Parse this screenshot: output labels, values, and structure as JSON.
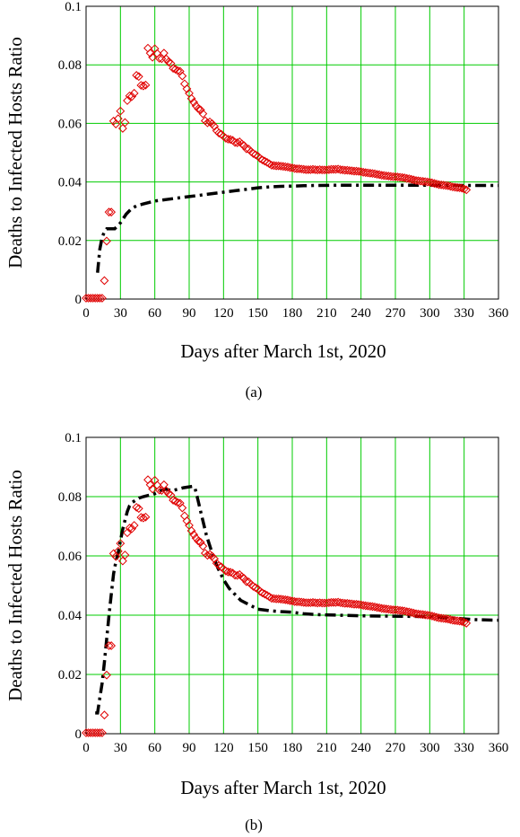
{
  "chart_data": [
    {
      "type": "line",
      "caption": "(a)",
      "xlabel": "Days after March 1st, 2020",
      "ylabel": "Deaths to Infected Hosts Ratio",
      "xlim": [
        0,
        360
      ],
      "ylim": [
        0,
        0.1
      ],
      "x_ticks": [
        "0",
        "30",
        "60",
        "90",
        "120",
        "150",
        "180",
        "210",
        "240",
        "270",
        "300",
        "330",
        "360"
      ],
      "y_ticks": [
        "0",
        "0.02",
        "0.04",
        "0.06",
        "0.08",
        "0.1"
      ],
      "grid": true,
      "colors": {
        "grid": "#00cc00",
        "observed": "#e00000",
        "model": "#000000"
      },
      "series": [
        {
          "marker": "diamond",
          "x": [
            0,
            2,
            4,
            6,
            8,
            10,
            12,
            14,
            16,
            18,
            20,
            22,
            24,
            26,
            28,
            30,
            32,
            34,
            36,
            38,
            40,
            42,
            44,
            46,
            48,
            50,
            52,
            54,
            56,
            58,
            60,
            62,
            64,
            66,
            68,
            70,
            72,
            74,
            76,
            78,
            80,
            82,
            84,
            86,
            88,
            90,
            92,
            94,
            96,
            98,
            100,
            102,
            104,
            106,
            108,
            110,
            112,
            114,
            116,
            118,
            120,
            122,
            124,
            126,
            128,
            130,
            132,
            134,
            136,
            138,
            140,
            142,
            144,
            146,
            148,
            150,
            152,
            154,
            156,
            158,
            160,
            162,
            164,
            166,
            168,
            170,
            172,
            174,
            176,
            178,
            180,
            182,
            184,
            186,
            188,
            190,
            192,
            194,
            196,
            198,
            200,
            202,
            204,
            206,
            208,
            210,
            212,
            214,
            216,
            218,
            220,
            222,
            224,
            226,
            228,
            230,
            232,
            234,
            236,
            238,
            240,
            242,
            244,
            246,
            248,
            250,
            252,
            254,
            256,
            258,
            260,
            262,
            264,
            266,
            268,
            270,
            272,
            274,
            276,
            278,
            280,
            282,
            284,
            286,
            288,
            290,
            292,
            294,
            296,
            298,
            300,
            302,
            304,
            306,
            308,
            310,
            312,
            314,
            316,
            318,
            320,
            322,
            324,
            326,
            328,
            330,
            332
          ],
          "y": [
            0.0003,
            0.0003,
            0.0003,
            0.0003,
            0.0003,
            0.0003,
            0.0003,
            0.0003,
            0.0063,
            0.0198,
            0.0297,
            0.0297,
            0.0608,
            0.0598,
            0.0616,
            0.0642,
            0.0583,
            0.0603,
            0.0678,
            0.0694,
            0.0692,
            0.0703,
            0.0764,
            0.076,
            0.073,
            0.0728,
            0.0731,
            0.0857,
            0.084,
            0.0826,
            0.0855,
            0.0839,
            0.0822,
            0.0821,
            0.084,
            0.082,
            0.081,
            0.0805,
            0.0788,
            0.0785,
            0.078,
            0.0778,
            0.0762,
            0.0735,
            0.0718,
            0.0703,
            0.0685,
            0.0672,
            0.066,
            0.065,
            0.0646,
            0.0633,
            0.0609,
            0.0602,
            0.0605,
            0.0599,
            0.059,
            0.0575,
            0.0567,
            0.0563,
            0.0556,
            0.0549,
            0.0546,
            0.0545,
            0.0542,
            0.0535,
            0.0534,
            0.0537,
            0.053,
            0.0524,
            0.0513,
            0.0512,
            0.0504,
            0.0497,
            0.0493,
            0.0488,
            0.048,
            0.0475,
            0.0471,
            0.0467,
            0.0462,
            0.0457,
            0.0456,
            0.0455,
            0.0455,
            0.0454,
            0.0453,
            0.0452,
            0.0451,
            0.0449,
            0.0448,
            0.0446,
            0.0445,
            0.0445,
            0.0444,
            0.0443,
            0.0442,
            0.0442,
            0.0442,
            0.0443,
            0.0442,
            0.0441,
            0.0442,
            0.0441,
            0.0441,
            0.0441,
            0.0442,
            0.0443,
            0.0443,
            0.0443,
            0.0444,
            0.0442,
            0.0441,
            0.044,
            0.044,
            0.0439,
            0.0438,
            0.0437,
            0.0437,
            0.0436,
            0.0435,
            0.0433,
            0.0432,
            0.0431,
            0.043,
            0.0429,
            0.0428,
            0.0426,
            0.0425,
            0.0423,
            0.0422,
            0.0421,
            0.042,
            0.0419,
            0.0418,
            0.0418,
            0.0417,
            0.0416,
            0.0415,
            0.0414,
            0.0412,
            0.0411,
            0.0409,
            0.0407,
            0.0405,
            0.0404,
            0.0403,
            0.0402,
            0.0401,
            0.04,
            0.0399,
            0.0397,
            0.0395,
            0.0393,
            0.0391,
            0.039,
            0.0389,
            0.0388,
            0.0387,
            0.0385,
            0.0383,
            0.0382,
            0.0381,
            0.038,
            0.0379,
            0.0376,
            0.0373
          ]
        },
        {
          "line": "dash-dot",
          "x": [
            10,
            12,
            14,
            16,
            18,
            20,
            25,
            30,
            35,
            40,
            45,
            50,
            60,
            70,
            80,
            90,
            100,
            110,
            120,
            130,
            140,
            150,
            160,
            170,
            180,
            190,
            200,
            220,
            240,
            260,
            280,
            300,
            320,
            340,
            360
          ],
          "y": [
            0.009,
            0.017,
            0.021,
            0.023,
            0.024,
            0.024,
            0.024,
            0.026,
            0.029,
            0.031,
            0.032,
            0.0325,
            0.0335,
            0.034,
            0.0345,
            0.035,
            0.0355,
            0.036,
            0.0365,
            0.037,
            0.0375,
            0.038,
            0.0383,
            0.0385,
            0.0386,
            0.0387,
            0.0388,
            0.0389,
            0.0389,
            0.0389,
            0.0389,
            0.0389,
            0.0388,
            0.0388,
            0.0388
          ]
        }
      ]
    },
    {
      "type": "line",
      "caption": "(b)",
      "xlabel": "Days after March 1st, 2020",
      "ylabel": "Deaths to Infected Hosts Ratio",
      "xlim": [
        0,
        360
      ],
      "ylim": [
        0,
        0.1
      ],
      "x_ticks": [
        "0",
        "30",
        "60",
        "90",
        "120",
        "150",
        "180",
        "210",
        "240",
        "270",
        "300",
        "330",
        "360"
      ],
      "y_ticks": [
        "0",
        "0.02",
        "0.04",
        "0.06",
        "0.08",
        "0.1"
      ],
      "grid": true,
      "colors": {
        "grid": "#00cc00",
        "observed": "#e00000",
        "model": "#000000"
      },
      "series": [
        {
          "marker": "diamond",
          "x": [
            0,
            2,
            4,
            6,
            8,
            10,
            12,
            14,
            16,
            18,
            20,
            22,
            24,
            26,
            28,
            30,
            32,
            34,
            36,
            38,
            40,
            42,
            44,
            46,
            48,
            50,
            52,
            54,
            56,
            58,
            60,
            62,
            64,
            66,
            68,
            70,
            72,
            74,
            76,
            78,
            80,
            82,
            84,
            86,
            88,
            90,
            92,
            94,
            96,
            98,
            100,
            102,
            104,
            106,
            108,
            110,
            112,
            114,
            116,
            118,
            120,
            122,
            124,
            126,
            128,
            130,
            132,
            134,
            136,
            138,
            140,
            142,
            144,
            146,
            148,
            150,
            152,
            154,
            156,
            158,
            160,
            162,
            164,
            166,
            168,
            170,
            172,
            174,
            176,
            178,
            180,
            182,
            184,
            186,
            188,
            190,
            192,
            194,
            196,
            198,
            200,
            202,
            204,
            206,
            208,
            210,
            212,
            214,
            216,
            218,
            220,
            222,
            224,
            226,
            228,
            230,
            232,
            234,
            236,
            238,
            240,
            242,
            244,
            246,
            248,
            250,
            252,
            254,
            256,
            258,
            260,
            262,
            264,
            266,
            268,
            270,
            272,
            274,
            276,
            278,
            280,
            282,
            284,
            286,
            288,
            290,
            292,
            294,
            296,
            298,
            300,
            302,
            304,
            306,
            308,
            310,
            312,
            314,
            316,
            318,
            320,
            322,
            324,
            326,
            328,
            330,
            332
          ],
          "y": [
            0.0003,
            0.0003,
            0.0003,
            0.0003,
            0.0003,
            0.0003,
            0.0003,
            0.0003,
            0.0063,
            0.0198,
            0.0297,
            0.0297,
            0.0608,
            0.0598,
            0.0616,
            0.0642,
            0.0583,
            0.0603,
            0.0678,
            0.0694,
            0.0692,
            0.0703,
            0.0764,
            0.076,
            0.073,
            0.0728,
            0.0731,
            0.0857,
            0.084,
            0.0826,
            0.0855,
            0.0839,
            0.0822,
            0.0821,
            0.084,
            0.082,
            0.081,
            0.0805,
            0.0788,
            0.0785,
            0.078,
            0.0778,
            0.0762,
            0.0735,
            0.0718,
            0.0703,
            0.0685,
            0.0672,
            0.066,
            0.065,
            0.0646,
            0.0633,
            0.0609,
            0.0602,
            0.0605,
            0.0599,
            0.059,
            0.0575,
            0.0567,
            0.0563,
            0.0556,
            0.0549,
            0.0546,
            0.0545,
            0.0542,
            0.0535,
            0.0534,
            0.0537,
            0.053,
            0.0524,
            0.0513,
            0.0512,
            0.0504,
            0.0497,
            0.0493,
            0.0488,
            0.048,
            0.0475,
            0.0471,
            0.0467,
            0.0462,
            0.0457,
            0.0456,
            0.0455,
            0.0455,
            0.0454,
            0.0453,
            0.0452,
            0.0451,
            0.0449,
            0.0448,
            0.0446,
            0.0445,
            0.0445,
            0.0444,
            0.0443,
            0.0442,
            0.0442,
            0.0442,
            0.0443,
            0.0442,
            0.0441,
            0.0442,
            0.0441,
            0.0441,
            0.0441,
            0.0442,
            0.0443,
            0.0443,
            0.0443,
            0.0444,
            0.0442,
            0.0441,
            0.044,
            0.044,
            0.0439,
            0.0438,
            0.0437,
            0.0437,
            0.0436,
            0.0435,
            0.0433,
            0.0432,
            0.0431,
            0.043,
            0.0429,
            0.0428,
            0.0426,
            0.0425,
            0.0423,
            0.0422,
            0.0421,
            0.042,
            0.0419,
            0.0418,
            0.0418,
            0.0417,
            0.0416,
            0.0415,
            0.0414,
            0.0412,
            0.0411,
            0.0409,
            0.0407,
            0.0405,
            0.0404,
            0.0403,
            0.0402,
            0.0401,
            0.04,
            0.0399,
            0.0397,
            0.0395,
            0.0393,
            0.0391,
            0.039,
            0.0389,
            0.0388,
            0.0387,
            0.0385,
            0.0383,
            0.0382,
            0.0381,
            0.038,
            0.0379,
            0.0376,
            0.0373
          ]
        },
        {
          "line": "dash-dot",
          "x": [
            8,
            10,
            12,
            14,
            16,
            18,
            20,
            22,
            24,
            26,
            28,
            30,
            32,
            34,
            36,
            38,
            40,
            42,
            44,
            46,
            50,
            55,
            60,
            65,
            70,
            75,
            80,
            85,
            90,
            93,
            95,
            97,
            100,
            105,
            110,
            115,
            120,
            125,
            130,
            135,
            140,
            145,
            150,
            155,
            160,
            170,
            180,
            190,
            200,
            220,
            240,
            260,
            280,
            300,
            320,
            340,
            360
          ],
          "y": [
            0.007,
            0.007,
            0.012,
            0.017,
            0.024,
            0.032,
            0.04,
            0.047,
            0.054,
            0.058,
            0.061,
            0.065,
            0.069,
            0.072,
            0.075,
            0.077,
            0.078,
            0.0785,
            0.079,
            0.0795,
            0.08,
            0.0805,
            0.081,
            0.082,
            0.0825,
            0.082,
            0.0825,
            0.083,
            0.0833,
            0.0835,
            0.083,
            0.08,
            0.075,
            0.067,
            0.061,
            0.056,
            0.052,
            0.049,
            0.047,
            0.045,
            0.044,
            0.043,
            0.042,
            0.0418,
            0.0415,
            0.0412,
            0.041,
            0.0405,
            0.0402,
            0.04,
            0.0398,
            0.0397,
            0.0396,
            0.0395,
            0.039,
            0.0385,
            0.0383
          ]
        }
      ]
    }
  ]
}
